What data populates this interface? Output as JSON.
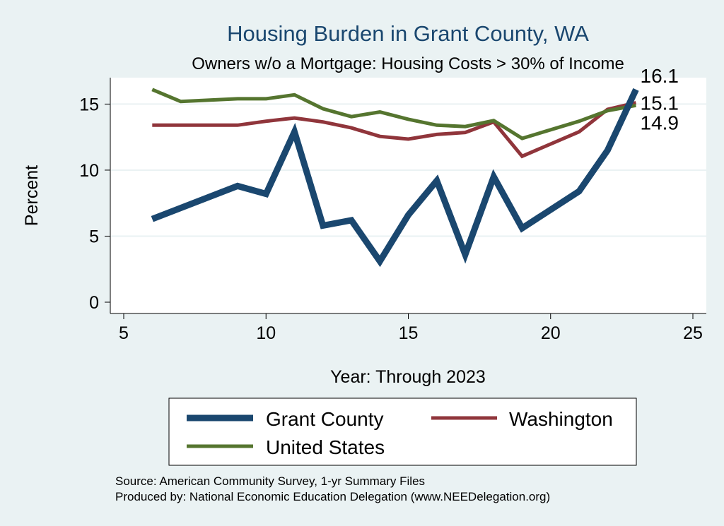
{
  "chart_data": {
    "type": "line",
    "title": "Housing Burden in Grant County, WA",
    "subtitle": "Owners w/o a Mortgage: Housing Costs > 30% of Income",
    "xlabel": "Year: Through 2023",
    "ylabel": "Percent",
    "xlim": [
      5,
      25
    ],
    "ylim": [
      0,
      17
    ],
    "xticks": [
      5,
      10,
      15,
      20,
      25
    ],
    "yticks": [
      0,
      5,
      10,
      15
    ],
    "grid": true,
    "legend_position": "bottom",
    "series": [
      {
        "name": "Grant County",
        "color": "#1a476f",
        "x": [
          6,
          9,
          10,
          11,
          12,
          13,
          14,
          15,
          16,
          17,
          18,
          19,
          21,
          22,
          23
        ],
        "values": [
          6.3,
          8.8,
          8.2,
          12.9,
          5.8,
          6.2,
          3.1,
          6.6,
          9.2,
          3.6,
          9.5,
          5.6,
          8.4,
          11.5,
          16.1
        ],
        "end_label": "16.1"
      },
      {
        "name": "Washington",
        "color": "#90353b",
        "x": [
          6,
          9,
          10,
          11,
          12,
          13,
          14,
          15,
          16,
          17,
          18,
          19,
          21,
          22,
          23
        ],
        "values": [
          13.4,
          13.4,
          13.7,
          13.95,
          13.65,
          13.2,
          12.55,
          12.35,
          12.7,
          12.85,
          13.65,
          11.05,
          12.9,
          14.6,
          15.1
        ],
        "end_label": "15.1"
      },
      {
        "name": "United States",
        "color": "#55752f",
        "x": [
          6,
          7,
          9,
          10,
          11,
          12,
          13,
          14,
          15,
          16,
          17,
          18,
          19,
          21,
          22,
          23
        ],
        "values": [
          16.1,
          15.2,
          15.4,
          15.4,
          15.7,
          14.65,
          14.05,
          14.4,
          13.85,
          13.4,
          13.3,
          13.75,
          12.4,
          13.7,
          14.5,
          14.9
        ],
        "end_label": "14.9"
      }
    ]
  },
  "footer": {
    "source": "Source: American Community Survey, 1-yr Summary Files",
    "produced_by": "Produced by: National Economic Education Delegation (www.NEEDelegation.org)"
  }
}
